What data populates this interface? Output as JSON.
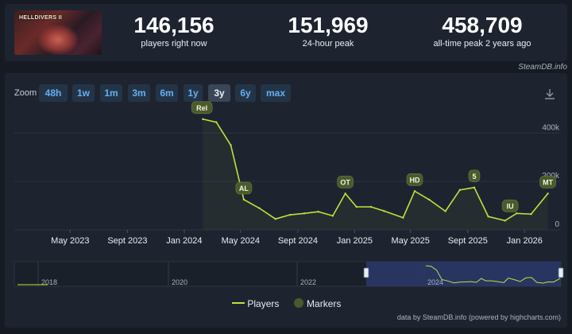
{
  "stats": [
    {
      "value": "146,156",
      "label": "players right now"
    },
    {
      "value": "151,969",
      "label": "24-hour peak"
    },
    {
      "value": "458,709",
      "label": "all-time peak 2 years ago"
    }
  ],
  "banner": {
    "title": "HELLDIVERS II"
  },
  "credit_top": "SteamDB.info",
  "zoom": {
    "label": "Zoom",
    "options": [
      "48h",
      "1w",
      "1m",
      "3m",
      "6m",
      "1y",
      "3y",
      "6y",
      "max"
    ],
    "active": "3y"
  },
  "legend": {
    "players": "Players",
    "markers": "Markers"
  },
  "credit_bottom": "data by SteamDB.info (powered by highcharts.com)",
  "colors": {
    "line": "#c4e03a",
    "marker": "#4b5a2c",
    "grid": "#2b3340",
    "navigator_sel": "#2b3a6b"
  },
  "chart_data": {
    "type": "line",
    "series": [
      {
        "name": "Players",
        "x": [
          "2024-02-10",
          "2024-03-10",
          "2024-04-10",
          "2024-05-08",
          "2024-06-10",
          "2024-07-15",
          "2024-08-15",
          "2024-09-15",
          "2024-10-15",
          "2024-11-15",
          "2024-12-12",
          "2025-01-05",
          "2025-02-05",
          "2025-03-05",
          "2025-04-15",
          "2025-05-10",
          "2025-06-10",
          "2025-07-15",
          "2025-08-15",
          "2025-09-15",
          "2025-10-15",
          "2025-11-20",
          "2025-12-15",
          "2026-01-15",
          "2026-02-20"
        ],
        "values": [
          458000,
          445000,
          350000,
          125000,
          90000,
          45000,
          62000,
          68000,
          75000,
          58000,
          150000,
          95000,
          95000,
          78000,
          50000,
          160000,
          125000,
          77000,
          165000,
          175000,
          55000,
          38000,
          68000,
          65000,
          150000
        ]
      }
    ],
    "markers": [
      {
        "label": "Rel",
        "x": "2024-02-08"
      },
      {
        "label": "AL",
        "x": "2024-05-08"
      },
      {
        "label": "OT",
        "x": "2024-12-12"
      },
      {
        "label": "HD",
        "x": "2025-05-10"
      },
      {
        "label": "5",
        "x": "2025-09-15"
      },
      {
        "label": "IU",
        "x": "2025-12-01"
      },
      {
        "label": "MT",
        "x": "2026-02-20"
      }
    ],
    "x_ticks": [
      "May 2023",
      "Sept 2023",
      "Jan 2024",
      "May 2024",
      "Sept 2024",
      "Jan 2025",
      "May 2025",
      "Sept 2025",
      "Jan 2026"
    ],
    "y_ticks": [
      "0",
      "200k",
      "400k"
    ],
    "ylim": [
      0,
      500000
    ],
    "navigator_labels": [
      "2018",
      "2020",
      "2022",
      "2024"
    ],
    "grid": true,
    "legend_position": "bottom"
  }
}
